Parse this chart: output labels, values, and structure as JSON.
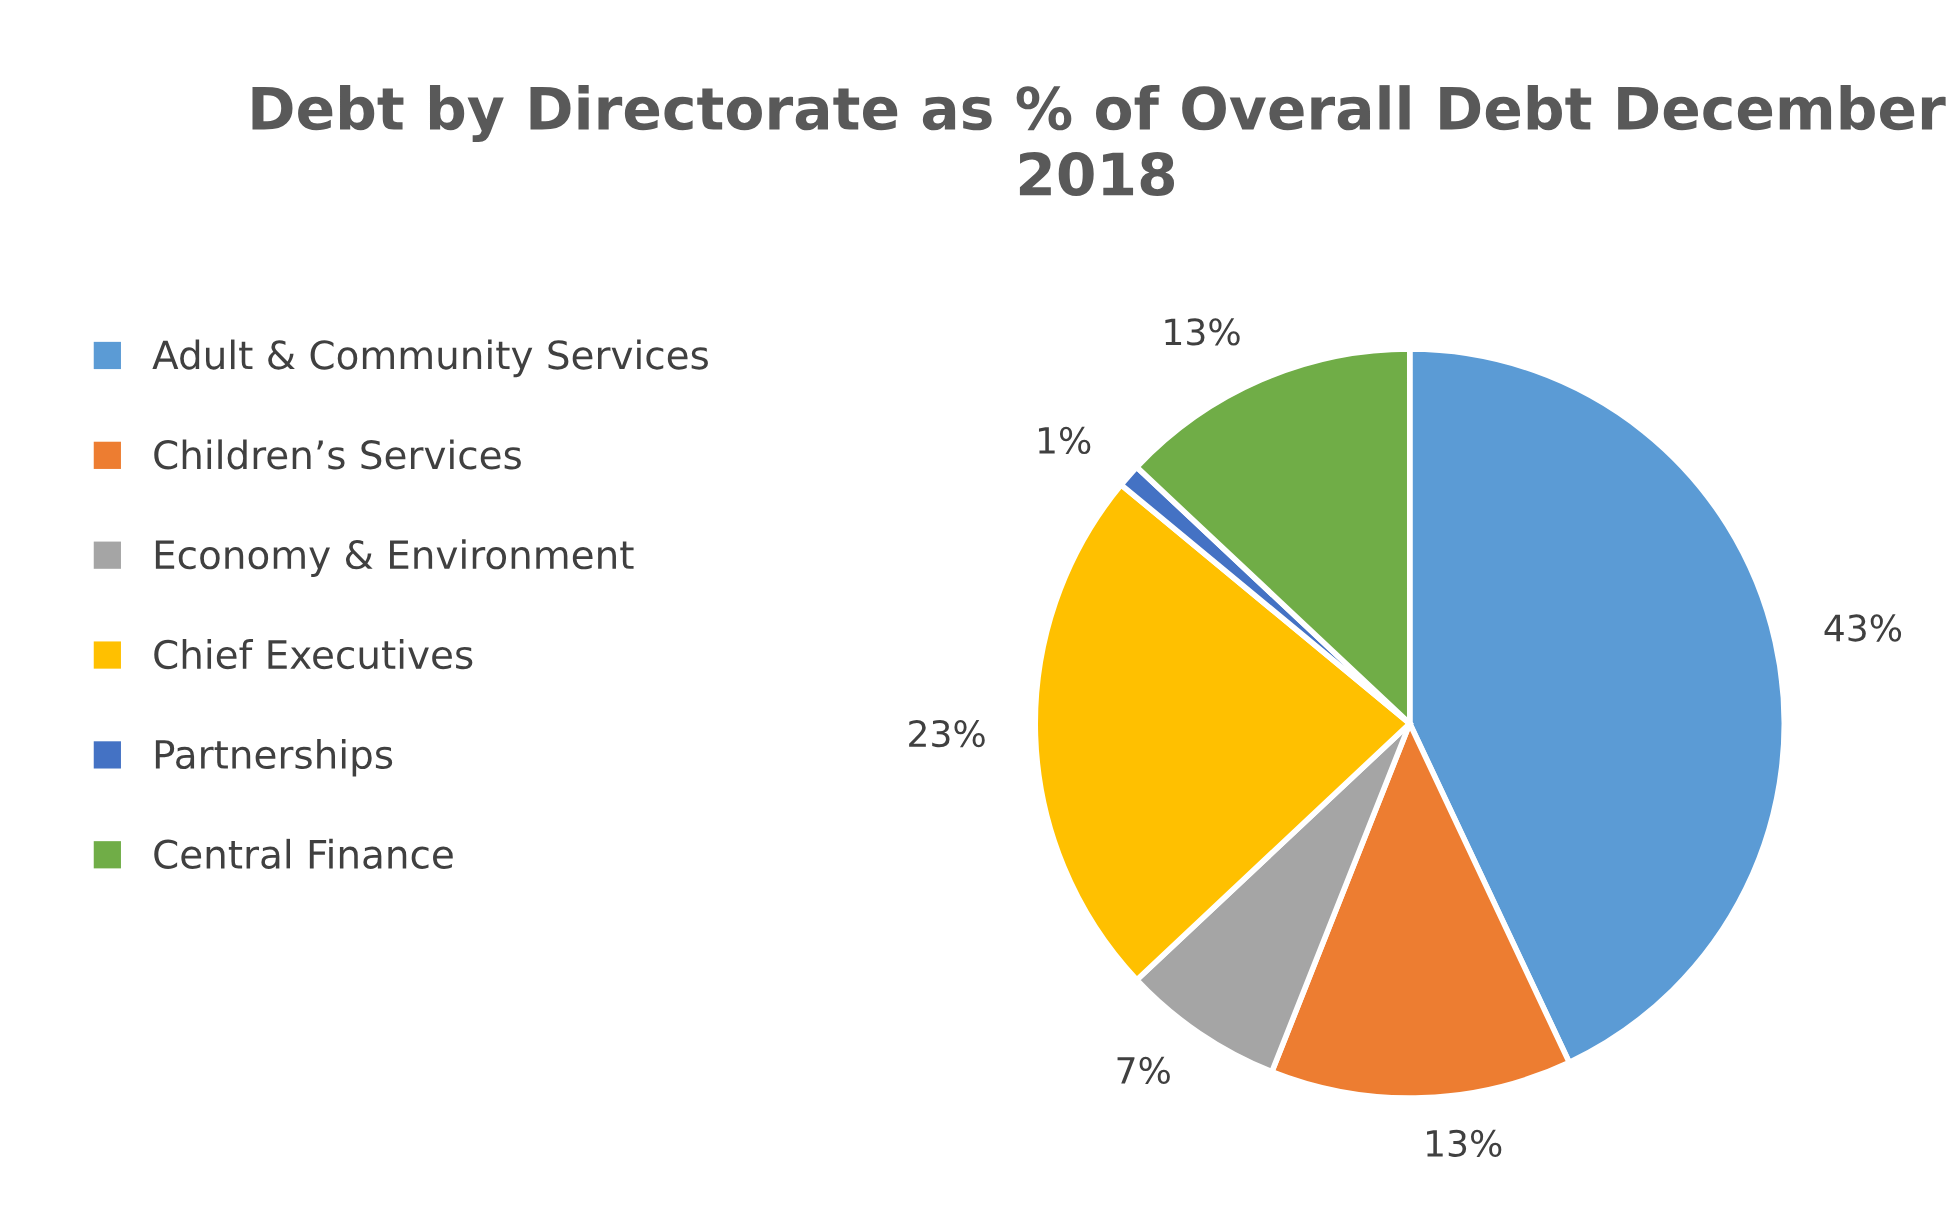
{
  "chart_data": {
    "type": "pie",
    "title": "Debt by Directorate as % of Overall Debt December 2018",
    "categories": [
      "Adult & Community Services",
      "Children’s Services",
      "Economy & Environment",
      "Chief Executives",
      "Partnerships",
      "Central Finance"
    ],
    "values": [
      43,
      13,
      7,
      23,
      1,
      13
    ],
    "value_labels": [
      "43%",
      "13%",
      "7%",
      "23%",
      "1%",
      "13%"
    ],
    "colors": [
      "#5b9bd5",
      "#ed7d31",
      "#a5a5a5",
      "#ffc000",
      "#4472c4",
      "#70ad47"
    ],
    "legend": "left"
  }
}
